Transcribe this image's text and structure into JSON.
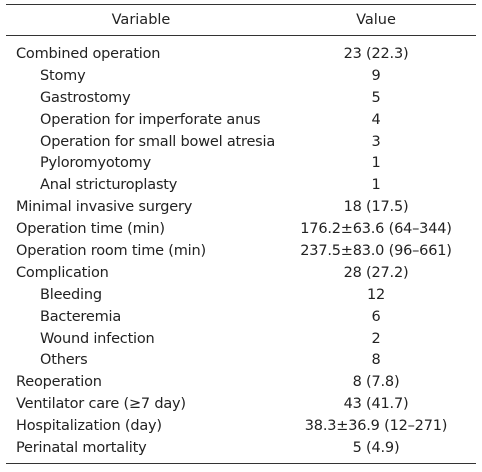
{
  "table": {
    "headers": {
      "variable": "Variable",
      "value": "Value"
    },
    "rows": [
      {
        "variable": "Combined operation",
        "value": "23 (22.3)",
        "indent": false
      },
      {
        "variable": "Stomy",
        "value": "9",
        "indent": true
      },
      {
        "variable": "Gastrostomy",
        "value": "5",
        "indent": true
      },
      {
        "variable": "Operation for imperforate anus",
        "value": "4",
        "indent": true
      },
      {
        "variable": "Operation for small bowel atresia",
        "value": "3",
        "indent": true
      },
      {
        "variable": "Pyloromyotomy",
        "value": "1",
        "indent": true
      },
      {
        "variable": "Anal stricturoplasty",
        "value": "1",
        "indent": true
      },
      {
        "variable": "Minimal invasive surgery",
        "value": "18 (17.5)",
        "indent": false
      },
      {
        "variable": "Operation time (min)",
        "value": "176.2±63.6 (64–344)",
        "indent": false
      },
      {
        "variable": "Operation room time (min)",
        "value": "237.5±83.0 (96–661)",
        "indent": false
      },
      {
        "variable": "Complication",
        "value": "28 (27.2)",
        "indent": false
      },
      {
        "variable": "Bleeding",
        "value": "12",
        "indent": true
      },
      {
        "variable": "Bacteremia",
        "value": "6",
        "indent": true
      },
      {
        "variable": "Wound infection",
        "value": "2",
        "indent": true
      },
      {
        "variable": "Others",
        "value": "8",
        "indent": true
      },
      {
        "variable": "Reoperation",
        "value": "8 (7.8)",
        "indent": false
      },
      {
        "variable": "Ventilator care (≥7 day)",
        "value": "43 (41.7)",
        "indent": false
      },
      {
        "variable": "Hospitalization (day)",
        "value": "38.3±36.9 (12–271)",
        "indent": false
      },
      {
        "variable": "Perinatal mortality",
        "value": "5 (4.9)",
        "indent": false
      }
    ]
  }
}
